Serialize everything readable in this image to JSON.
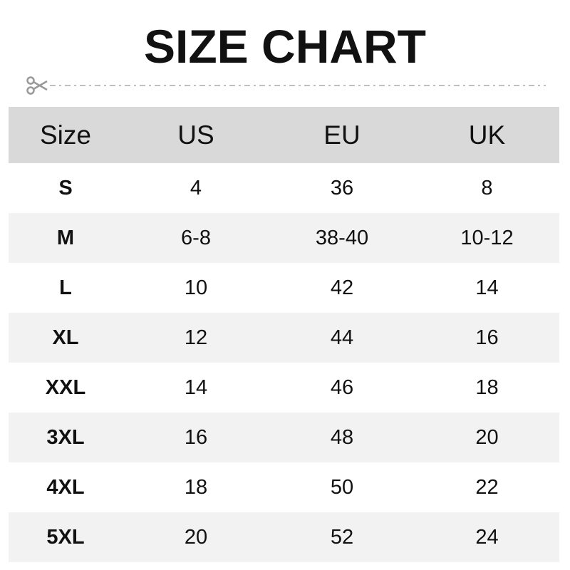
{
  "title": "SIZE CHART",
  "icons": {
    "cut_line": "scissors-icon"
  },
  "colors": {
    "header_bg": "#d9d9d9",
    "alt_row_bg": "#f2f2f2",
    "text": "#111111",
    "dash": "#aaaaaa"
  },
  "chart_data": {
    "type": "table",
    "title": "SIZE CHART",
    "columns": [
      "Size",
      "US",
      "EU",
      "UK"
    ],
    "rows": [
      [
        "S",
        "4",
        "36",
        "8"
      ],
      [
        "M",
        "6-8",
        "38-40",
        "10-12"
      ],
      [
        "L",
        "10",
        "42",
        "14"
      ],
      [
        "XL",
        "12",
        "44",
        "16"
      ],
      [
        "XXL",
        "14",
        "46",
        "18"
      ],
      [
        "3XL",
        "16",
        "48",
        "20"
      ],
      [
        "4XL",
        "18",
        "50",
        "22"
      ],
      [
        "5XL",
        "20",
        "52",
        "24"
      ]
    ]
  }
}
